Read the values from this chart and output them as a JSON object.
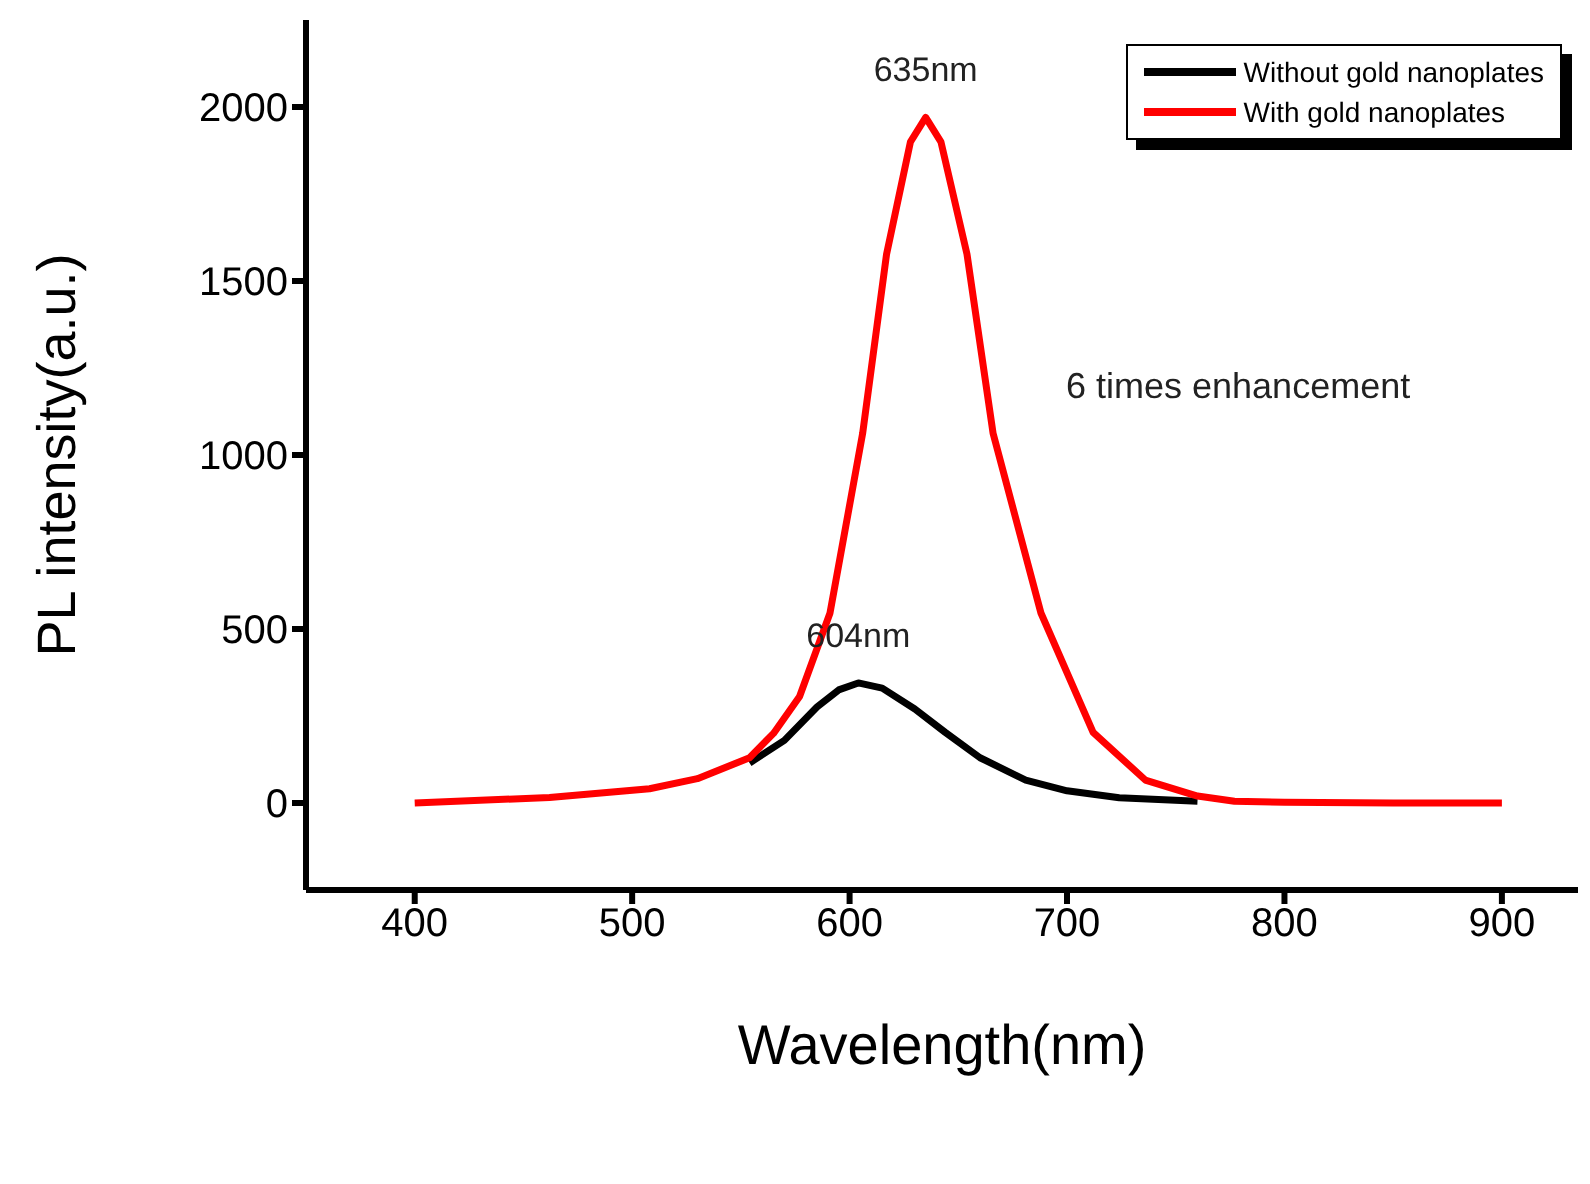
{
  "chart_data": {
    "type": "line",
    "xlabel": "Wavelength(nm)",
    "ylabel": "PL intensity(a.u.)",
    "xlim": [
      350,
      935
    ],
    "xticks": [
      400,
      500,
      600,
      700,
      800,
      900
    ],
    "ylim": [
      -250,
      2250
    ],
    "yticks": [
      0,
      500,
      1000,
      1500,
      2000
    ],
    "grid": false,
    "legend": "top right",
    "marker": "none",
    "line_style": "solid",
    "series": [
      {
        "name": "Without gold nanoplates",
        "color": "#000000",
        "x": [
          554,
          570,
          585,
          595,
          604,
          615,
          630,
          644,
          660,
          681,
          700,
          724,
          760
        ],
        "values": [
          115,
          180,
          276,
          325,
          345,
          330,
          270,
          203,
          130,
          66,
          35,
          15,
          5
        ]
      },
      {
        "name": "With gold nanoplates",
        "color": "#ff0000",
        "x": [
          400,
          462,
          508,
          530,
          554,
          565,
          577,
          591,
          606,
          617,
          628,
          635,
          642,
          654,
          666,
          688,
          712,
          736,
          760,
          777,
          800,
          850,
          900
        ],
        "values": [
          0,
          16,
          41,
          70,
          130,
          200,
          306,
          546,
          1062,
          1577,
          1900,
          1970,
          1900,
          1577,
          1062,
          546,
          203,
          66,
          20,
          5,
          2,
          0,
          0
        ]
      }
    ],
    "annotations": [
      {
        "text": "635nm",
        "x": 635,
        "y": 1970
      },
      {
        "text": "604nm",
        "x": 604,
        "y": 345
      },
      "6 times enhancement"
    ]
  }
}
